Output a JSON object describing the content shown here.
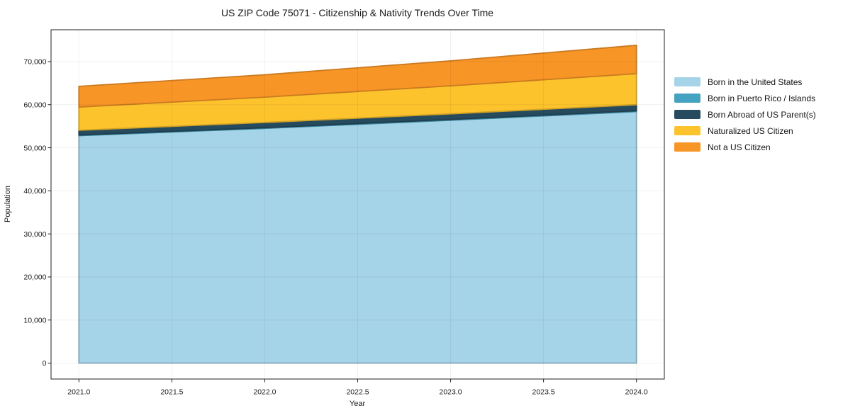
{
  "chart_data": {
    "type": "area",
    "stacked": true,
    "title": "US ZIP Code 75071 - Citizenship & Nativity Trends Over Time",
    "xlabel": "Year",
    "ylabel": "Population",
    "x": [
      2021,
      2022,
      2023,
      2024
    ],
    "series": [
      {
        "name": "Born in the United States",
        "color": "#a5d3e8",
        "values": [
          52800,
          54500,
          56400,
          58400
        ]
      },
      {
        "name": "Born in Puerto Rico / Islands",
        "color": "#45a3c2",
        "values": [
          150,
          160,
          180,
          200
        ]
      },
      {
        "name": "Born Abroad of US Parent(s)",
        "color": "#264b5e",
        "values": [
          1100,
          1200,
          1300,
          1400
        ]
      },
      {
        "name": "Naturalized US Citizen",
        "color": "#fcc32d",
        "values": [
          5400,
          5900,
          6500,
          7200
        ]
      },
      {
        "name": "Not a US Citizen",
        "color": "#f79527",
        "values": [
          4800,
          5200,
          5800,
          6600
        ]
      }
    ],
    "x_ticks": [
      2021.0,
      2021.5,
      2022.0,
      2022.5,
      2023.0,
      2023.5,
      2024.0
    ],
    "y_ticks": [
      0,
      10000,
      20000,
      30000,
      40000,
      50000,
      60000,
      70000
    ],
    "xlim": [
      2020.85,
      2024.15
    ],
    "ylim": [
      -3700,
      77400
    ],
    "grid": true,
    "grid_color": "rgba(0,0,0,0.06)",
    "spine_color": "#222222",
    "legend_position": "right"
  }
}
